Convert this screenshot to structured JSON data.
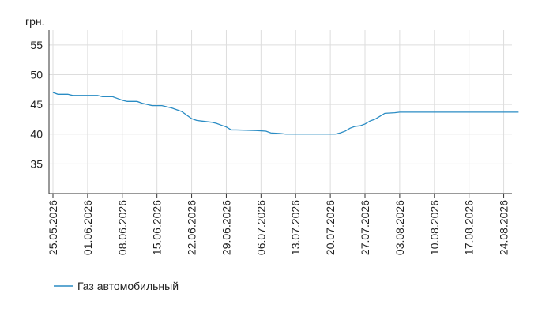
{
  "chart_data": {
    "type": "line",
    "y_label": "грн.",
    "x": [
      "25.05.2026",
      "26.05.2026",
      "28.05.2026",
      "29.05.2026",
      "03.06.2026",
      "04.06.2026",
      "06.06.2026",
      "07.06.2026",
      "08.06.2026",
      "09.06.2026",
      "11.06.2026",
      "12.06.2026",
      "13.06.2026",
      "14.06.2026",
      "16.06.2026",
      "17.06.2026",
      "18.06.2026",
      "20.06.2026",
      "21.06.2026",
      "22.06.2026",
      "23.06.2026",
      "24.06.2026",
      "25.06.2026",
      "26.06.2026",
      "27.06.2026",
      "28.06.2026",
      "29.06.2026",
      "30.06.2026",
      "01.07.2026",
      "05.07.2026",
      "07.07.2026",
      "08.07.2026",
      "10.07.2026",
      "11.07.2026",
      "21.07.2026",
      "22.07.2026",
      "23.07.2026",
      "24.07.2026",
      "25.07.2026",
      "26.07.2026",
      "27.07.2026",
      "28.07.2026",
      "29.07.2026",
      "30.07.2026",
      "31.07.2026",
      "02.08.2026",
      "03.08.2026",
      "27.08.2026"
    ],
    "series": [
      {
        "name": "Газ автомобильный",
        "color": "#2a8cc4",
        "values": [
          47.0,
          46.7,
          46.7,
          46.5,
          46.5,
          46.3,
          46.3,
          46.0,
          45.7,
          45.5,
          45.5,
          45.2,
          45.0,
          44.8,
          44.8,
          44.6,
          44.4,
          43.8,
          43.2,
          42.6,
          42.3,
          42.2,
          42.1,
          42.0,
          41.8,
          41.5,
          41.2,
          40.7,
          40.7,
          40.6,
          40.5,
          40.2,
          40.1,
          40.0,
          40.0,
          40.2,
          40.5,
          41.0,
          41.3,
          41.4,
          41.7,
          42.2,
          42.5,
          43.0,
          43.5,
          43.6,
          43.7,
          43.7
        ]
      }
    ],
    "xticks": [
      "25.05.2026",
      "01.06.2026",
      "08.06.2026",
      "15.06.2026",
      "22.06.2026",
      "29.06.2026",
      "06.07.2026",
      "13.07.2026",
      "20.07.2026",
      "27.07.2026",
      "03.08.2026",
      "10.08.2026",
      "17.08.2026",
      "24.08.2026"
    ],
    "ylim": [
      30,
      57.5
    ],
    "yticks": [
      35,
      40,
      45,
      50,
      55
    ],
    "grid": true,
    "legend": "bottom-left"
  }
}
